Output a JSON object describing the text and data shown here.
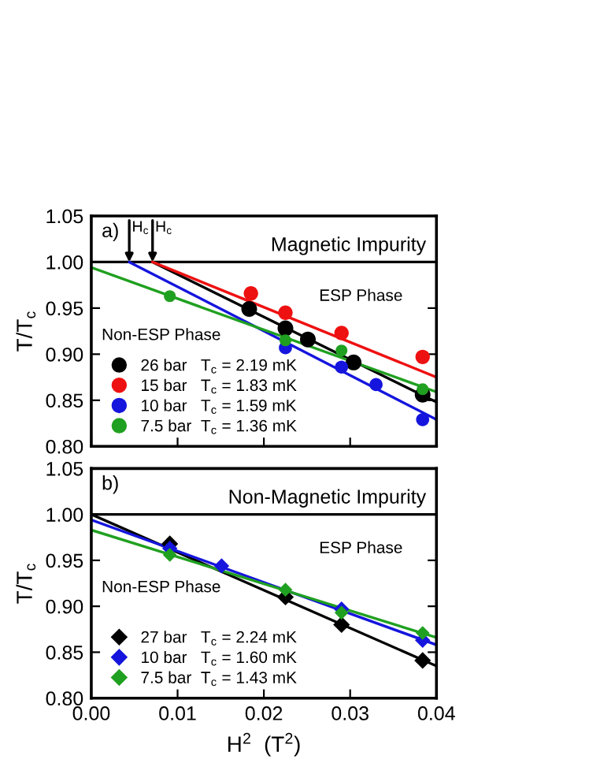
{
  "chart_data": [
    {
      "type": "scatter",
      "title": "Magnetic Impurity",
      "ylabel": "T/T$_{c}$",
      "marker": "circle",
      "legend": "bottom left",
      "tick_labels": "y",
      "grid": false,
      "xlim": [
        0.0,
        0.04
      ],
      "xticks": [
        0.0,
        0.01,
        0.02,
        0.03,
        0.04
      ],
      "ylim": [
        0.8,
        1.05
      ],
      "yticks": [
        {
          "value": 0.8,
          "label": "0.80"
        },
        {
          "value": 0.85,
          "label": "0.85"
        },
        {
          "value": 0.9,
          "label": "0.90"
        },
        {
          "value": 0.95,
          "label": "0.95"
        },
        {
          "value": 1.0,
          "label": "1.00"
        },
        {
          "value": 1.05,
          "label": "1.05"
        }
      ],
      "ref_lines": [
        {
          "axis": "y",
          "value": 1.0,
          "color": "#000000"
        }
      ],
      "annotations": [
        "a)",
        "ESP Phase",
        "Non-ESP Phase",
        {
          "text": "H$_{c}$",
          "x": 0.0044,
          "y": 1.0
        },
        {
          "text": "H$_{c}$",
          "x": 0.0071,
          "y": 1.0
        }
      ],
      "series": [
        {
          "name": "26 bar   T$_{c}$ = 2.19 mK",
          "color": "#000000",
          "x": [
            0.0183,
            0.0225,
            0.0251,
            0.0304,
            0.0384
          ],
          "values": [
            0.949,
            0.928,
            0.916,
            0.891,
            0.856
          ]
        },
        {
          "name": "15 bar   T$_{c}$ = 1.83 mK",
          "color": "#ee1111",
          "x": [
            0.0185,
            0.0225,
            0.029,
            0.0384
          ],
          "values": [
            0.966,
            0.945,
            0.923,
            0.897
          ]
        },
        {
          "name": "10 bar   T$_{c}$ = 1.59 mK",
          "color": "#1515dd",
          "x": [
            0.0225,
            0.029,
            0.033,
            0.0384
          ],
          "values": [
            0.907,
            0.886,
            0.867,
            0.829
          ]
        },
        {
          "name": "7.5 bar  T$_{c}$ = 1.36 mK",
          "color": "#20a020",
          "x": [
            0.0091,
            0.0225,
            0.029,
            0.0384
          ],
          "values": [
            0.963,
            0.915,
            0.904,
            0.862
          ]
        },
        {
          "type": "line",
          "marker": "none",
          "color": "#000000",
          "x": [
            0.0071,
            0.04
          ],
          "values": [
            1.0,
            0.848
          ]
        },
        {
          "type": "line",
          "marker": "none",
          "color": "#ee1111",
          "x": [
            0.0071,
            0.04
          ],
          "values": [
            1.0,
            0.875
          ]
        },
        {
          "type": "line",
          "marker": "none",
          "color": "#1515dd",
          "x": [
            0.0044,
            0.04
          ],
          "values": [
            1.0,
            0.829
          ]
        },
        {
          "type": "line",
          "marker": "none",
          "color": "#20a020",
          "x": [
            0.0,
            0.04
          ],
          "values": [
            0.994,
            0.859
          ]
        }
      ]
    },
    {
      "type": "scatter",
      "title": "Non-Magnetic Impurity",
      "xlabel": "H$^{2}$  (T$^{2}$)",
      "ylabel": "T/T$_{c}$",
      "marker": "diamond",
      "legend": "bottom left",
      "grid": false,
      "xlim": [
        0.0,
        0.04
      ],
      "xticks": [
        {
          "value": 0.0,
          "label": "0.00"
        },
        {
          "value": 0.01,
          "label": "0.01"
        },
        {
          "value": 0.02,
          "label": "0.02"
        },
        {
          "value": 0.03,
          "label": "0.03"
        },
        {
          "value": 0.04,
          "label": "0.04"
        }
      ],
      "ylim": [
        0.8,
        1.05
      ],
      "yticks": [
        {
          "value": 0.8,
          "label": "0.80"
        },
        {
          "value": 0.85,
          "label": "0.85"
        },
        {
          "value": 0.9,
          "label": "0.90"
        },
        {
          "value": 0.95,
          "label": "0.95"
        },
        {
          "value": 1.0,
          "label": "1.00"
        },
        {
          "value": 1.05,
          "label": "1.05"
        }
      ],
      "ref_lines": [
        {
          "axis": "y",
          "value": 1.0,
          "color": "#000000"
        }
      ],
      "annotations": [
        "b)",
        "ESP Phase",
        "Non-ESP Phase"
      ],
      "series": [
        {
          "name": "27 bar   T$_{c}$ = 2.24 mK",
          "color": "#000000",
          "x": [
            0.0091,
            0.0225,
            0.029,
            0.0384
          ],
          "values": [
            0.968,
            0.91,
            0.88,
            0.841
          ]
        },
        {
          "name": "10 bar   T$_{c}$ = 1.60 mK",
          "color": "#1515dd",
          "x": [
            0.0091,
            0.0151,
            0.029,
            0.0384
          ],
          "values": [
            0.963,
            0.944,
            0.897,
            0.863
          ]
        },
        {
          "name": "7.5 bar  T$_{c}$ = 1.43 mK",
          "color": "#20a020",
          "x": [
            0.0091,
            0.0225,
            0.029,
            0.0384
          ],
          "values": [
            0.956,
            0.918,
            0.893,
            0.871
          ]
        },
        {
          "type": "line",
          "marker": "none",
          "color": "#000000",
          "x": [
            0.0,
            0.04
          ],
          "values": [
            1.0,
            0.835
          ]
        },
        {
          "type": "line",
          "marker": "none",
          "color": "#1515dd",
          "x": [
            0.0,
            0.04
          ],
          "values": [
            0.994,
            0.858
          ]
        },
        {
          "type": "line",
          "marker": "none",
          "color": "#20a020",
          "x": [
            0.0,
            0.04
          ],
          "values": [
            0.983,
            0.866
          ]
        }
      ]
    }
  ]
}
